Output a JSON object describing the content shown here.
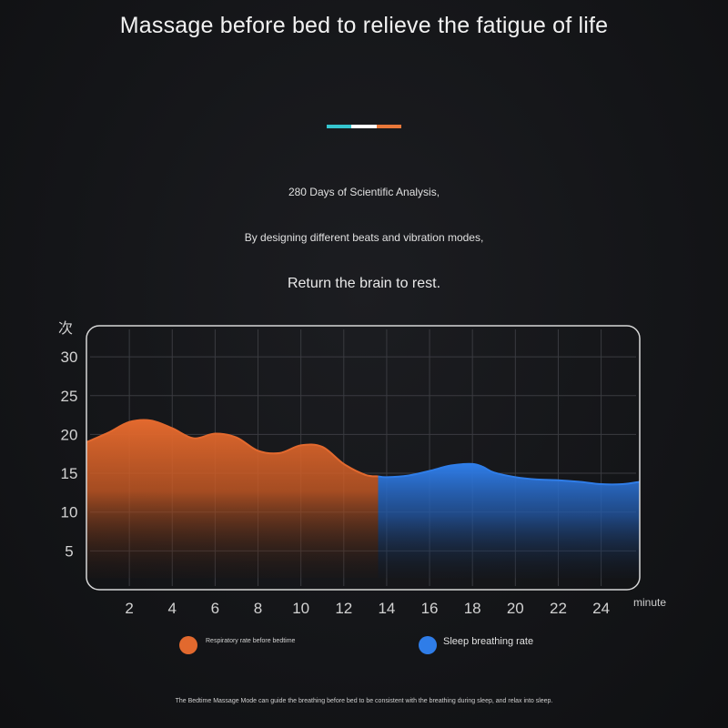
{
  "page": {
    "title": "Massage before bed to relieve the fatigue of life",
    "lines": [
      "280 Days of Scientific Analysis,",
      "By designing different beats and vibration modes,",
      "Return the brain to rest."
    ],
    "footnote": "The Bedtime Massage Mode can guide the breathing before bed to be consistent with the breathing during sleep, and relax into sleep.",
    "accent_colors": [
      "#35c6cf",
      "#ffffff",
      "#e8783a"
    ]
  },
  "chart_data": {
    "type": "area",
    "ylabel": "次",
    "xlabel": "minute",
    "x_ticks": [
      2,
      4,
      6,
      8,
      10,
      12,
      14,
      16,
      18,
      20,
      22,
      24
    ],
    "y_ticks": [
      5,
      10,
      15,
      20,
      25,
      30
    ],
    "xlim": [
      0,
      25.8
    ],
    "ylim": [
      0,
      34
    ],
    "grid": true,
    "series": [
      {
        "name": "Respiratory rate before bedtime",
        "color": "#e2692e",
        "x": [
          0,
          1,
          2,
          3,
          4,
          5,
          6,
          7,
          8,
          9,
          10,
          11,
          12,
          13,
          13.6
        ],
        "y": [
          19,
          20.2,
          21.6,
          21.8,
          20.8,
          19.5,
          20.1,
          19.6,
          17.9,
          17.6,
          18.6,
          18.4,
          16.2,
          14.8,
          14.6
        ]
      },
      {
        "name": "Sleep breathing rate",
        "color": "#2f7de8",
        "x": [
          13.6,
          14,
          15,
          16,
          17,
          18,
          18.5,
          19,
          20,
          21,
          22,
          23,
          24,
          25,
          25.8
        ],
        "y": [
          14.6,
          14.5,
          14.7,
          15.3,
          16.0,
          16.2,
          15.8,
          15.1,
          14.5,
          14.2,
          14.1,
          13.9,
          13.6,
          13.6,
          13.9
        ]
      }
    ]
  }
}
